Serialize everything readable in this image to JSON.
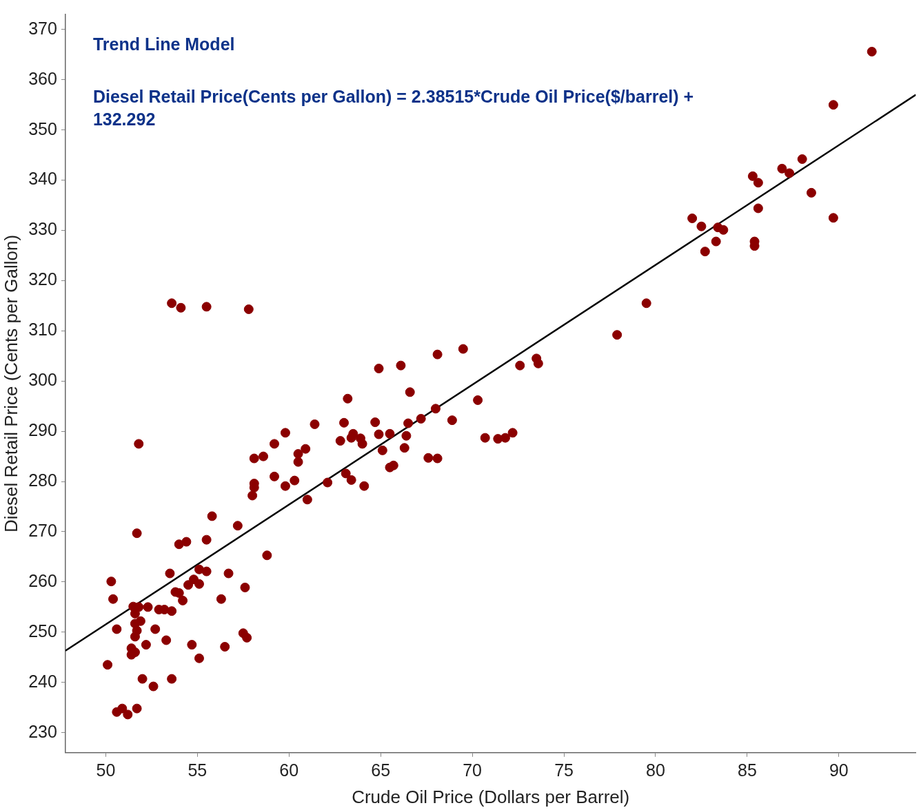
{
  "chart_data": {
    "type": "scatter",
    "xlabel": "Crude Oil Price (Dollars per Barrel)",
    "ylabel": "Diesel Retail Price (Cents per Gallon)",
    "annotations": [
      "Trend Line Model",
      "Diesel Retail Price(Cents per Gallon) = 2.38515*Crude Oil Price($/barrel) + 132.292"
    ],
    "xlim": [
      47.8,
      94.2
    ],
    "xticks": [
      50,
      55,
      60,
      65,
      70,
      75,
      80,
      85,
      90
    ],
    "ylim": [
      226,
      373
    ],
    "yticks": [
      230,
      240,
      250,
      260,
      270,
      280,
      290,
      300,
      310,
      320,
      330,
      340,
      350,
      360,
      370
    ],
    "grid": false,
    "legend": false,
    "marker": "circle",
    "series": [
      {
        "type": "scatter",
        "color": "#8b0000",
        "x": [
          91.8,
          89.7,
          88.0,
          86.9,
          87.3,
          85.3,
          85.6,
          88.5,
          85.6,
          82.0,
          89.7,
          82.5,
          83.4,
          83.7,
          83.3,
          85.4,
          82.7,
          85.4,
          79.5,
          77.9,
          73.5,
          73.6,
          72.6,
          69.5,
          68.1,
          66.1,
          64.9,
          63.2,
          66.6,
          70.3,
          68.0,
          68.9,
          67.2,
          66.5,
          64.7,
          63.0,
          61.4,
          63.5,
          63.4,
          63.9,
          64.0,
          62.8,
          64.9,
          65.5,
          66.4,
          66.3,
          65.1,
          70.7,
          71.4,
          71.8,
          72.2,
          67.6,
          68.1,
          65.7,
          65.5,
          59.8,
          59.2,
          58.6,
          58.1,
          60.9,
          60.5,
          60.5,
          63.1,
          63.4,
          62.1,
          64.1,
          60.3,
          59.2,
          59.8,
          58.1,
          58.1,
          58.0,
          61.0,
          51.8,
          53.6,
          54.1,
          55.5,
          57.8,
          55.8,
          57.2,
          51.7,
          54.4,
          54.0,
          55.5,
          58.8,
          50.3,
          50.4,
          53.5,
          55.1,
          55.5,
          56.7,
          54.8,
          55.1,
          54.5,
          57.6,
          53.8,
          54.0,
          54.2,
          56.3,
          51.5,
          51.8,
          52.3,
          52.9,
          53.2,
          53.6,
          51.6,
          51.9,
          51.6,
          50.6,
          51.7,
          52.7,
          57.5,
          57.7,
          51.6,
          53.3,
          52.2,
          54.7,
          56.5,
          51.4,
          51.6,
          51.4,
          55.1,
          50.1,
          52.0,
          53.6,
          52.6,
          51.7,
          50.9,
          50.6,
          51.2
        ],
        "values": [
          365.6,
          355.0,
          344.2,
          342.3,
          341.4,
          340.8,
          339.5,
          337.5,
          334.4,
          332.4,
          332.5,
          330.8,
          330.6,
          330.1,
          327.8,
          327.8,
          325.8,
          326.9,
          315.5,
          309.2,
          304.5,
          303.5,
          303.1,
          306.4,
          305.3,
          303.1,
          302.5,
          296.5,
          297.8,
          296.2,
          294.5,
          292.2,
          292.5,
          291.6,
          291.8,
          291.7,
          291.4,
          289.5,
          288.7,
          288.6,
          287.5,
          288.1,
          289.4,
          289.5,
          289.1,
          286.7,
          286.2,
          288.7,
          288.5,
          288.7,
          289.7,
          284.7,
          284.6,
          283.2,
          282.8,
          289.7,
          287.5,
          285.0,
          284.6,
          286.5,
          285.5,
          283.9,
          281.6,
          280.3,
          279.8,
          279.1,
          280.2,
          281.0,
          279.1,
          279.6,
          278.8,
          277.2,
          276.4,
          287.5,
          315.5,
          314.6,
          314.8,
          314.3,
          273.1,
          271.2,
          269.7,
          268.0,
          267.5,
          268.4,
          265.3,
          260.1,
          256.6,
          261.7,
          262.5,
          262.1,
          261.7,
          260.5,
          259.6,
          259.4,
          258.9,
          258.0,
          257.8,
          256.3,
          256.6,
          255.1,
          255.0,
          255.0,
          254.5,
          254.5,
          254.2,
          253.7,
          252.2,
          251.7,
          250.6,
          250.3,
          250.6,
          249.8,
          248.9,
          249.1,
          248.4,
          247.5,
          247.5,
          247.1,
          246.8,
          246.0,
          245.5,
          244.8,
          243.5,
          240.7,
          240.7,
          239.2,
          234.8,
          234.8,
          234.1,
          233.6
        ]
      },
      {
        "type": "line",
        "color": "#000000",
        "marker": "none",
        "x": [
          47.8,
          94.2
        ],
        "values": [
          246.3,
          357.0
        ]
      }
    ]
  }
}
